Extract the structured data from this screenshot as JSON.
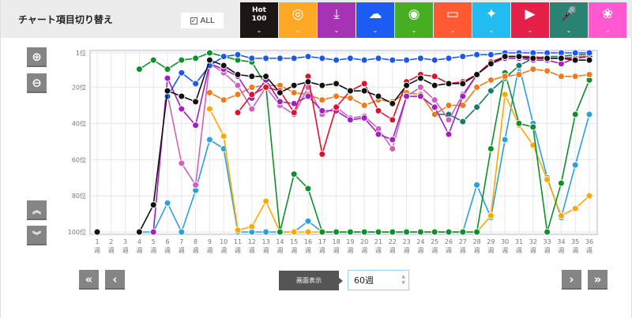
{
  "header": {
    "title": "チャート項目切り替え",
    "all_label": "ALL",
    "tabs": [
      {
        "name": "hot100",
        "label1": "Hot",
        "label2": "100",
        "color": "#1c1614",
        "icon": "hot100"
      },
      {
        "name": "sales",
        "color": "#ffa826",
        "icon": "disc-icon",
        "glyph": "◎"
      },
      {
        "name": "download",
        "color": "#a632b4",
        "icon": "download-icon",
        "glyph": "⤓"
      },
      {
        "name": "streaming",
        "color": "#1d5cf2",
        "icon": "cloud-music-icon",
        "glyph": "☁"
      },
      {
        "name": "radio",
        "color": "#45ae22",
        "icon": "radio-antenna-icon",
        "glyph": "◉"
      },
      {
        "name": "pc-lookup",
        "color": "#ff5a32",
        "icon": "pc-disc-icon",
        "glyph": "▭"
      },
      {
        "name": "twitter",
        "color": "#22bcf0",
        "icon": "twitter-icon",
        "glyph": "✦"
      },
      {
        "name": "youtube",
        "color": "#e22048",
        "icon": "video-play-icon",
        "glyph": "▶"
      },
      {
        "name": "karaoke",
        "color": "#2a8272",
        "icon": "microphone-icon",
        "glyph": "🎤"
      },
      {
        "name": "all-combined",
        "color": "#ff58d0",
        "icon": "venn-circles-icon",
        "glyph": "❀"
      }
    ],
    "chevron": "⌄"
  },
  "controls": {
    "display_label": "画面表示",
    "display_value": "60週",
    "first": "«",
    "prev": "‹",
    "next": "›",
    "last": "»",
    "zoom_in": "⊕",
    "zoom_out": "⊖",
    "up": "︽",
    "down": "︾"
  },
  "chart_data": {
    "type": "line",
    "ylim": [
      1,
      100
    ],
    "y_reversed": true,
    "y_ticks": [
      {
        "v": 1,
        "label": "1位"
      },
      {
        "v": 20,
        "label": "20位"
      },
      {
        "v": 40,
        "label": "40位"
      },
      {
        "v": 60,
        "label": "60位"
      },
      {
        "v": 80,
        "label": "80位"
      },
      {
        "v": 100,
        "label": "100位"
      }
    ],
    "x": [
      1,
      2,
      3,
      4,
      5,
      6,
      7,
      8,
      9,
      10,
      11,
      12,
      13,
      14,
      15,
      16,
      17,
      18,
      19,
      20,
      21,
      22,
      23,
      24,
      25,
      26,
      27,
      28,
      29,
      30,
      31,
      32,
      33,
      34,
      35,
      36
    ],
    "x_unit": "週",
    "grid": true,
    "series": [
      {
        "color": "#2aa0dc",
        "values": [
          null,
          null,
          null,
          100,
          100,
          84,
          100,
          77,
          49,
          54,
          100,
          100,
          100,
          100,
          100,
          94,
          100,
          100,
          100,
          100,
          100,
          100,
          100,
          100,
          100,
          100,
          100,
          74,
          92,
          49,
          8,
          40,
          70,
          92,
          63,
          35
        ]
      },
      {
        "color": "#ffa800",
        "values": [
          null,
          null,
          null,
          null,
          null,
          null,
          null,
          null,
          32,
          47,
          99,
          97,
          83,
          100,
          100,
          100,
          100,
          100,
          100,
          100,
          100,
          100,
          100,
          100,
          100,
          100,
          100,
          100,
          91,
          24,
          41,
          52,
          71,
          91,
          87,
          80
        ]
      },
      {
        "color": "#0d8f2a",
        "values": [
          null,
          null,
          null,
          10,
          5,
          10,
          5,
          4,
          1,
          3,
          5,
          6,
          19,
          100,
          68,
          76,
          100,
          100,
          100,
          100,
          100,
          100,
          100,
          100,
          100,
          100,
          100,
          100,
          54,
          12,
          40,
          42,
          100,
          73,
          35,
          16
        ]
      },
      {
        "color": "#1a7a6a",
        "values": [
          null,
          null,
          null,
          null,
          null,
          null,
          null,
          null,
          null,
          null,
          null,
          null,
          null,
          null,
          null,
          null,
          null,
          null,
          null,
          null,
          null,
          null,
          null,
          null,
          35,
          35,
          39,
          31,
          22,
          15,
          8,
          4,
          3,
          3,
          2,
          2
        ]
      },
      {
        "color": "#f07a1a",
        "values": [
          null,
          null,
          null,
          null,
          null,
          null,
          null,
          null,
          23,
          27,
          24,
          20,
          19,
          19,
          23,
          24,
          27,
          25,
          26,
          30,
          27,
          28,
          23,
          24,
          35,
          30,
          30,
          20,
          16,
          14,
          13,
          10,
          11,
          14,
          14,
          13
        ]
      },
      {
        "color": "#d060c0",
        "values": [
          null,
          null,
          null,
          null,
          null,
          24,
          62,
          74,
          7,
          12,
          19,
          32,
          20,
          30,
          35,
          20,
          35,
          31,
          37,
          36,
          43,
          54,
          25,
          20,
          27,
          38,
          24,
          13,
          6,
          4,
          4,
          4,
          4,
          4,
          3,
          3
        ]
      },
      {
        "color": "#a020c0",
        "values": [
          null,
          null,
          null,
          null,
          100,
          15,
          32,
          41,
          7,
          10,
          14,
          26,
          16,
          28,
          29,
          25,
          33,
          33,
          38,
          37,
          46,
          49,
          25,
          25,
          31,
          46,
          25,
          13,
          7,
          4,
          4,
          5,
          5,
          7,
          4,
          3
        ]
      },
      {
        "color": "#e0102a",
        "values": [
          null,
          null,
          null,
          null,
          null,
          null,
          null,
          null,
          null,
          null,
          34,
          24,
          20,
          22,
          34,
          14,
          57,
          31,
          22,
          18,
          33,
          38,
          17,
          13,
          14,
          18,
          17,
          13,
          6,
          3,
          3,
          3,
          4,
          4,
          4,
          3
        ]
      },
      {
        "color": "#1a56f0",
        "values": [
          null,
          null,
          null,
          null,
          null,
          25,
          12,
          18,
          8,
          3,
          2,
          4,
          4,
          4,
          4,
          3,
          4,
          5,
          4,
          5,
          4,
          5,
          5,
          4,
          5,
          4,
          3,
          2,
          2,
          1,
          1,
          1,
          1,
          1,
          1,
          1
        ]
      },
      {
        "color": "#111111",
        "values": [
          100,
          null,
          null,
          100,
          85,
          22,
          25,
          28,
          5,
          8,
          13,
          14,
          14,
          23,
          19,
          17,
          19,
          18,
          22,
          22,
          25,
          29,
          19,
          15,
          19,
          18,
          18,
          13,
          7,
          3,
          3,
          4,
          4,
          4,
          5,
          5
        ]
      }
    ]
  }
}
